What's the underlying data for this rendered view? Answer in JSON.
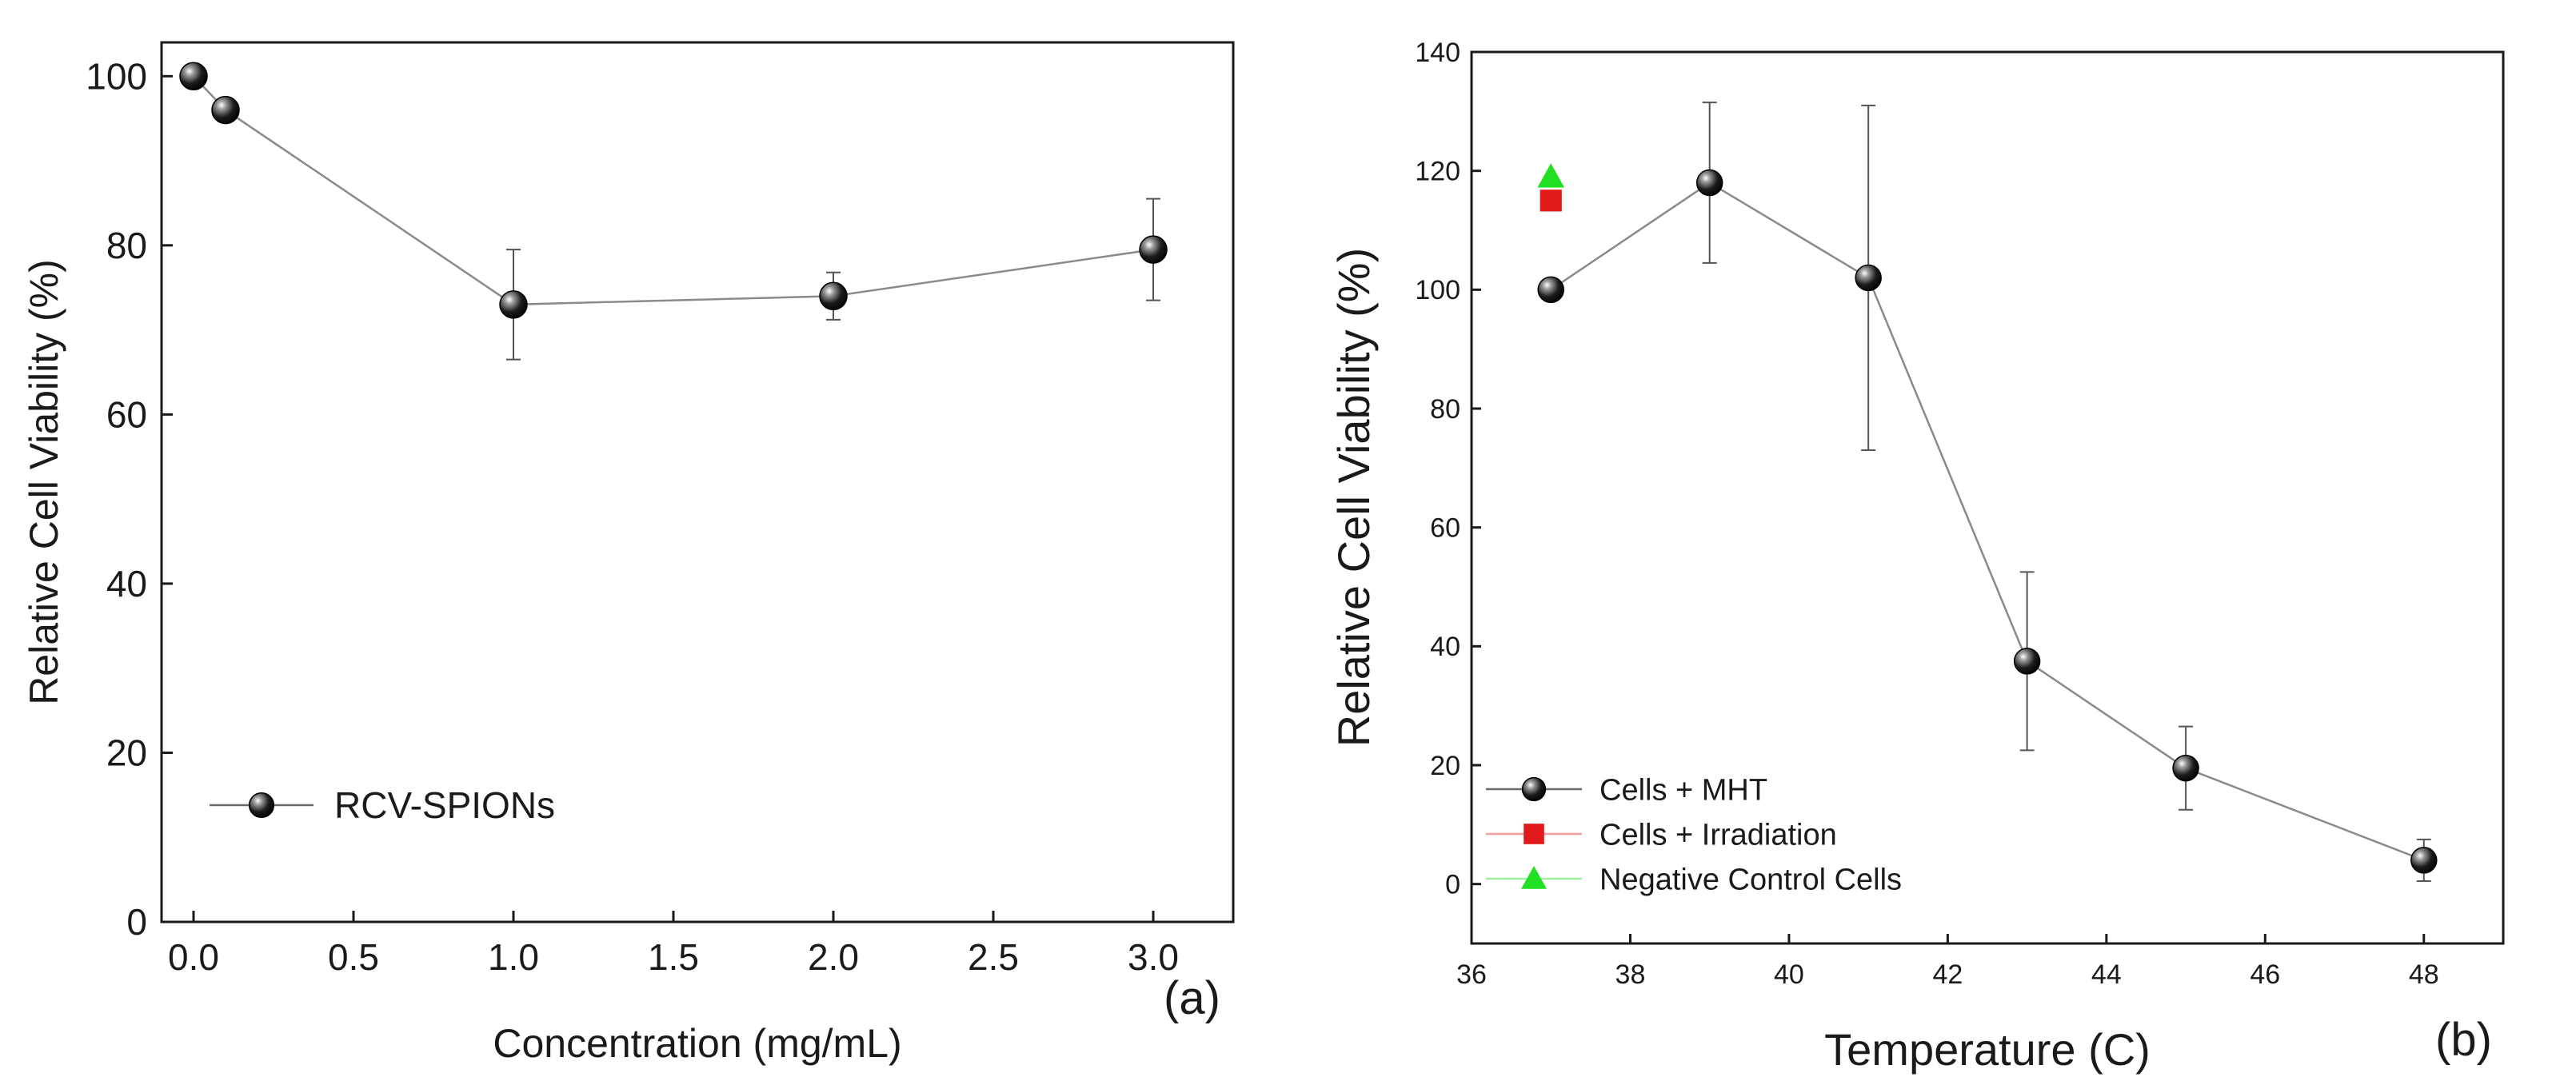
{
  "chart_data": [
    {
      "type": "scatter",
      "panel_label": "(a)",
      "title": "",
      "xlabel": "Concentration (mg/mL)",
      "ylabel": "Relative Cell Viability (%)",
      "xlim": [
        -0.1,
        3.25
      ],
      "ylim": [
        0,
        104
      ],
      "xticks": [
        0.0,
        0.5,
        1.0,
        1.5,
        2.0,
        2.5,
        3.0
      ],
      "xtick_labels": [
        "0.0",
        "0.5",
        "1.0",
        "1.5",
        "2.0",
        "2.5",
        "3.0"
      ],
      "yticks": [
        0,
        20,
        40,
        60,
        80,
        100
      ],
      "ytick_labels": [
        "0",
        "20",
        "40",
        "60",
        "80",
        "100"
      ],
      "grid": false,
      "legend_position": "bottom-left",
      "series": [
        {
          "name": "RCV-SPIONs",
          "marker": "sphere",
          "color": "#000000",
          "x": [
            0.0,
            0.1,
            1.0,
            2.0,
            3.0
          ],
          "y": [
            100,
            96,
            73,
            74,
            79.5
          ],
          "err": [
            0,
            1.2,
            6.5,
            2.8,
            6
          ]
        }
      ]
    },
    {
      "type": "scatter",
      "panel_label": "(b)",
      "title": "",
      "xlabel": "Temperature (C)",
      "ylabel": "Relative Cell Viability (%)",
      "xlim": [
        36,
        49
      ],
      "ylim": [
        -10,
        140
      ],
      "xticks": [
        36,
        38,
        40,
        42,
        44,
        46,
        48
      ],
      "xtick_labels": [
        "36",
        "38",
        "40",
        "42",
        "44",
        "46",
        "48"
      ],
      "yticks": [
        0,
        20,
        40,
        60,
        80,
        100,
        120,
        140
      ],
      "ytick_labels": [
        "0",
        "20",
        "40",
        "60",
        "80",
        "100",
        "120",
        "140"
      ],
      "grid": false,
      "legend_position": "bottom-left",
      "series": [
        {
          "name": "Cells + MHT",
          "marker": "sphere",
          "color": "#000000",
          "x": [
            37,
            39,
            41,
            43,
            45,
            48
          ],
          "y": [
            100,
            118,
            102,
            37.5,
            19.5,
            4
          ],
          "err": [
            0,
            13.5,
            29,
            15,
            7,
            3.5
          ]
        },
        {
          "name": "Cells + Irradiation",
          "marker": "square",
          "color": "#e0191b",
          "x": [
            37
          ],
          "y": [
            115
          ],
          "err": [
            0
          ]
        },
        {
          "name": "Negative Control Cells",
          "marker": "triangle",
          "color": "#21e021",
          "x": [
            37
          ],
          "y": [
            119
          ],
          "err": [
            0
          ]
        }
      ]
    }
  ]
}
